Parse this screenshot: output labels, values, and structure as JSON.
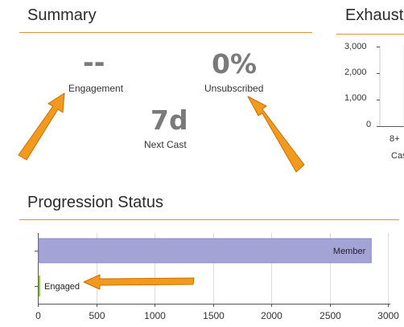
{
  "summary": {
    "title": "Summary",
    "engagement": {
      "value": "--",
      "label": "Engagement"
    },
    "unsubscribed": {
      "value": "0%",
      "label": "Unsubscribed"
    },
    "next_cast": {
      "value": "7d",
      "label": "Next Cast"
    }
  },
  "exhaustion": {
    "title": "Exhaust",
    "y_ticks": [
      "3,000",
      "2,000",
      "1,000",
      "0"
    ],
    "x_tick": "8+",
    "x_label": "Cas"
  },
  "progression": {
    "title": "Progression Status",
    "chart_data": {
      "type": "bar",
      "orientation": "horizontal",
      "categories": [
        "Member",
        "Engaged"
      ],
      "values": [
        2850,
        10
      ],
      "colors": [
        "#a3a3d6",
        "#9acd32"
      ],
      "xlim": [
        0,
        3000
      ],
      "x_ticks": [
        "0",
        "500",
        "1000",
        "1500",
        "2000",
        "2500",
        "3000"
      ],
      "grid": true
    }
  },
  "colors": {
    "accent_rule": "#e0923b",
    "arrow": "#f39a1e",
    "stat_value": "#7a7a7a"
  }
}
